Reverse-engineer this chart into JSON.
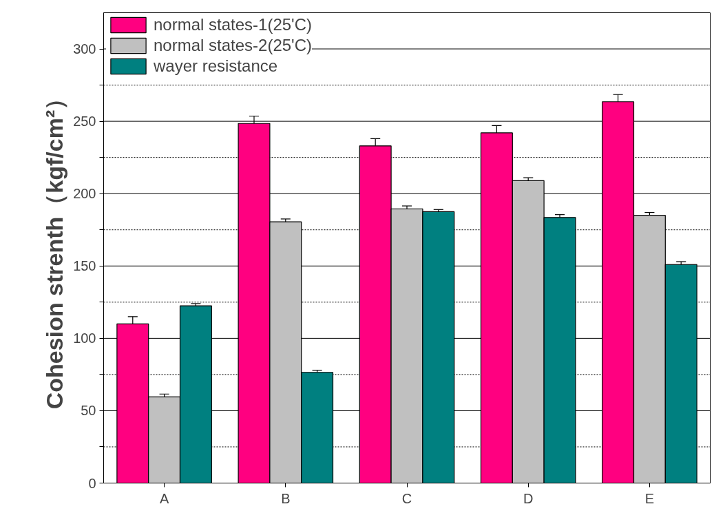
{
  "chart_data": {
    "type": "bar",
    "ylabel": "Cohesion strenth（kgf/cm²）",
    "categories": [
      "A",
      "B",
      "C",
      "D",
      "E"
    ],
    "series": [
      {
        "name": "normal states-1(25'C)",
        "color": "#ff0080",
        "values": [
          110,
          248.5,
          233,
          242,
          263.5
        ],
        "errors": [
          [
            110,
            115
          ],
          [
            248.5,
            253.5
          ],
          [
            233,
            238
          ],
          [
            242,
            247
          ],
          [
            263.5,
            268.5
          ]
        ]
      },
      {
        "name": "normal states-2(25'C)",
        "color": "#c0c0c0",
        "values": [
          59.5,
          180.5,
          189.5,
          209,
          185
        ],
        "errors": [
          [
            59.5,
            61.5
          ],
          [
            180.5,
            182.5
          ],
          [
            189.5,
            191.5
          ],
          [
            209,
            211
          ],
          [
            185,
            187
          ]
        ]
      },
      {
        "name": "wayer resistance",
        "color": "#008080",
        "values": [
          122.5,
          76.5,
          187.5,
          183.5,
          151
        ],
        "errors": [
          [
            122.5,
            124
          ],
          [
            76.5,
            78
          ],
          [
            187.5,
            189
          ],
          [
            183.5,
            185.5
          ],
          [
            151,
            153
          ]
        ]
      }
    ],
    "ylim": [
      0,
      325
    ],
    "yticks": [
      0,
      {
        "value": 25,
        "label": null
      },
      50,
      {
        "value": 75,
        "label": null
      },
      100,
      {
        "value": 125,
        "label": null
      },
      150,
      {
        "value": 175,
        "label": null
      },
      200,
      {
        "value": 225,
        "label": null
      },
      250,
      {
        "value": 275,
        "label": null
      },
      300
    ],
    "grid": "y",
    "legend": "top left"
  }
}
